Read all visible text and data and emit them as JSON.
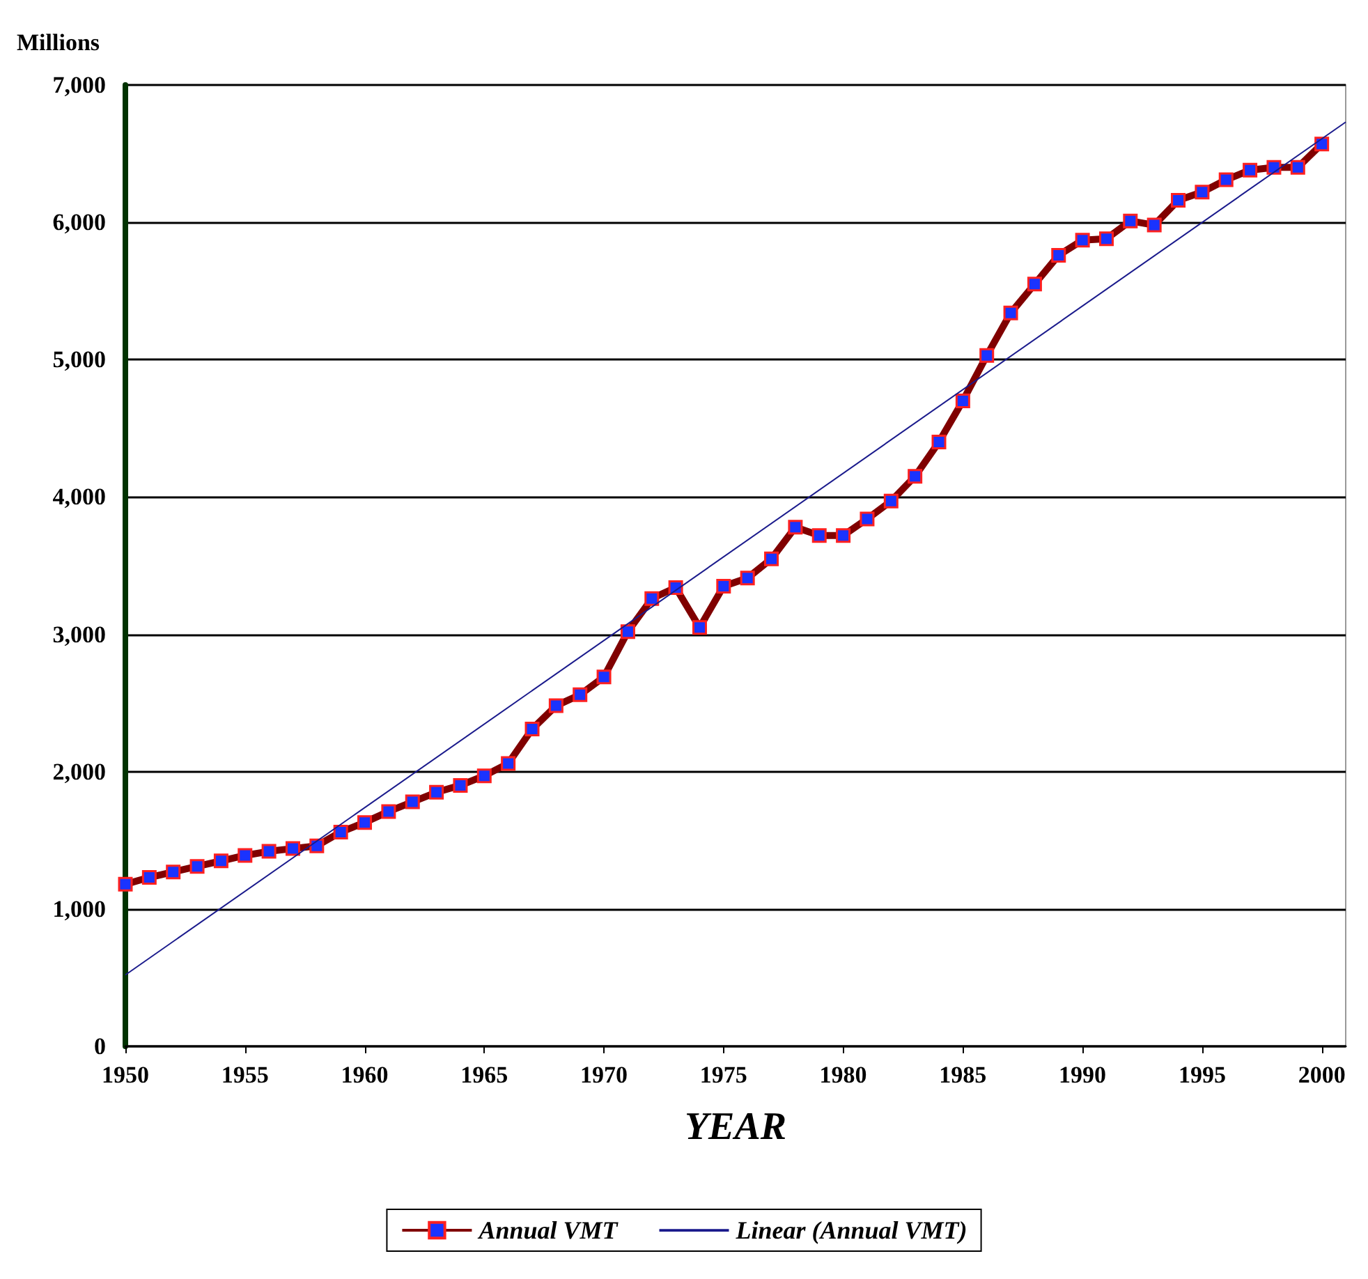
{
  "chart_data": {
    "type": "line",
    "xlabel": "YEAR",
    "ylabel": "Millions",
    "xlim": [
      1950,
      2001
    ],
    "xticks": [
      1950,
      1955,
      1960,
      1965,
      1970,
      1975,
      1980,
      1985,
      1990,
      1995,
      2000
    ],
    "ylim": [
      0,
      7000
    ],
    "yticks": [
      0,
      {
        "value": 1000,
        "label": "1,000"
      },
      {
        "value": 2000,
        "label": "2,000"
      },
      {
        "value": 3000,
        "label": "3,000"
      },
      {
        "value": 4000,
        "label": "4,000"
      },
      {
        "value": 5000,
        "label": "5,000"
      },
      {
        "value": 6000,
        "label": "6,000"
      },
      {
        "value": 7000,
        "label": "7,000"
      }
    ],
    "x": [
      1950,
      1951,
      1952,
      1953,
      1954,
      1955,
      1956,
      1957,
      1958,
      1959,
      1960,
      1961,
      1962,
      1963,
      1964,
      1965,
      1966,
      1967,
      1968,
      1969,
      1970,
      1971,
      1972,
      1973,
      1974,
      1975,
      1976,
      1977,
      1978,
      1979,
      1980,
      1981,
      1982,
      1983,
      1984,
      1985,
      1986,
      1987,
      1988,
      1989,
      1990,
      1991,
      1992,
      1993,
      1994,
      1995,
      1996,
      1997,
      1998,
      1999,
      2000
    ],
    "series": [
      {
        "name": "Annual VMT",
        "color": "#800000",
        "marker": "square",
        "values": [
          1180,
          1230,
          1270,
          1310,
          1350,
          1390,
          1420,
          1440,
          1460,
          1560,
          1630,
          1710,
          1780,
          1850,
          1900,
          1970,
          2060,
          2310,
          2480,
          2560,
          2690,
          3020,
          3260,
          3340,
          3050,
          3350,
          3410,
          3550,
          3780,
          3720,
          3720,
          3840,
          3970,
          4150,
          4400,
          4700,
          5030,
          5340,
          5550,
          5760,
          5870,
          5880,
          6010,
          5980,
          6160,
          6220,
          6310,
          6380,
          6400,
          6400,
          6570
        ]
      },
      {
        "name": "Linear (Annual VMT)",
        "color": "#1a1a8c",
        "marker": "none",
        "x": [
          1950,
          2001
        ],
        "values": [
          520,
          6730
        ]
      }
    ],
    "grid": "y",
    "legend": "bottom"
  }
}
